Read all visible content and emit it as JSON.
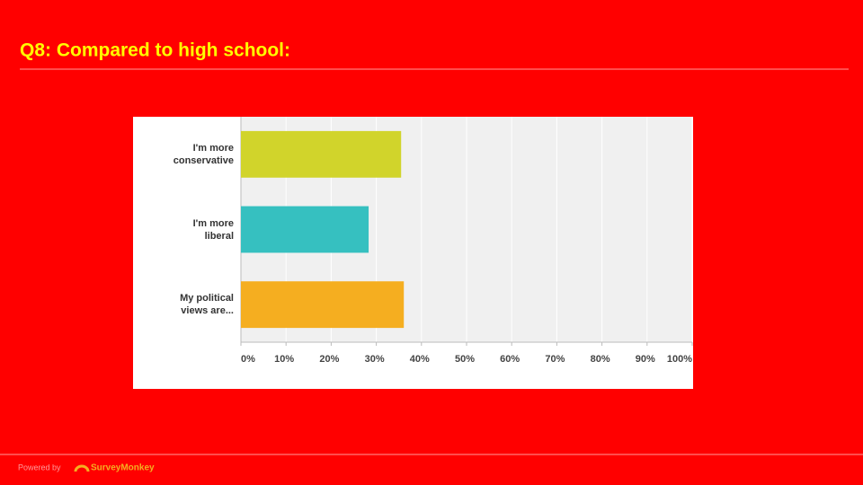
{
  "chart_data": {
    "type": "hbar",
    "title": "Q8: Compared to high school:",
    "categories": [
      "I'm more conservative",
      "I'm more liberal",
      "My political views are..."
    ],
    "values": [
      35.5,
      28.3,
      36.1
    ],
    "colors": [
      "#d1d42b",
      "#36c0c0",
      "#f5ae20"
    ],
    "xlim": [
      0,
      100
    ],
    "xticks": [
      {
        "value": 0,
        "label": "0%"
      },
      {
        "value": 10,
        "label": "10%"
      },
      {
        "value": 20,
        "label": "20%"
      },
      {
        "value": 30,
        "label": "30%"
      },
      {
        "value": 40,
        "label": "40%"
      },
      {
        "value": 50,
        "label": "50%"
      },
      {
        "value": 60,
        "label": "60%"
      },
      {
        "value": 70,
        "label": "70%"
      },
      {
        "value": 80,
        "label": "80%"
      },
      {
        "value": 90,
        "label": "90%"
      },
      {
        "value": 100,
        "label": "100%"
      }
    ],
    "grid": true
  },
  "footer": {
    "powered_by": "Powered by",
    "brand": "SurveyMonkey"
  }
}
